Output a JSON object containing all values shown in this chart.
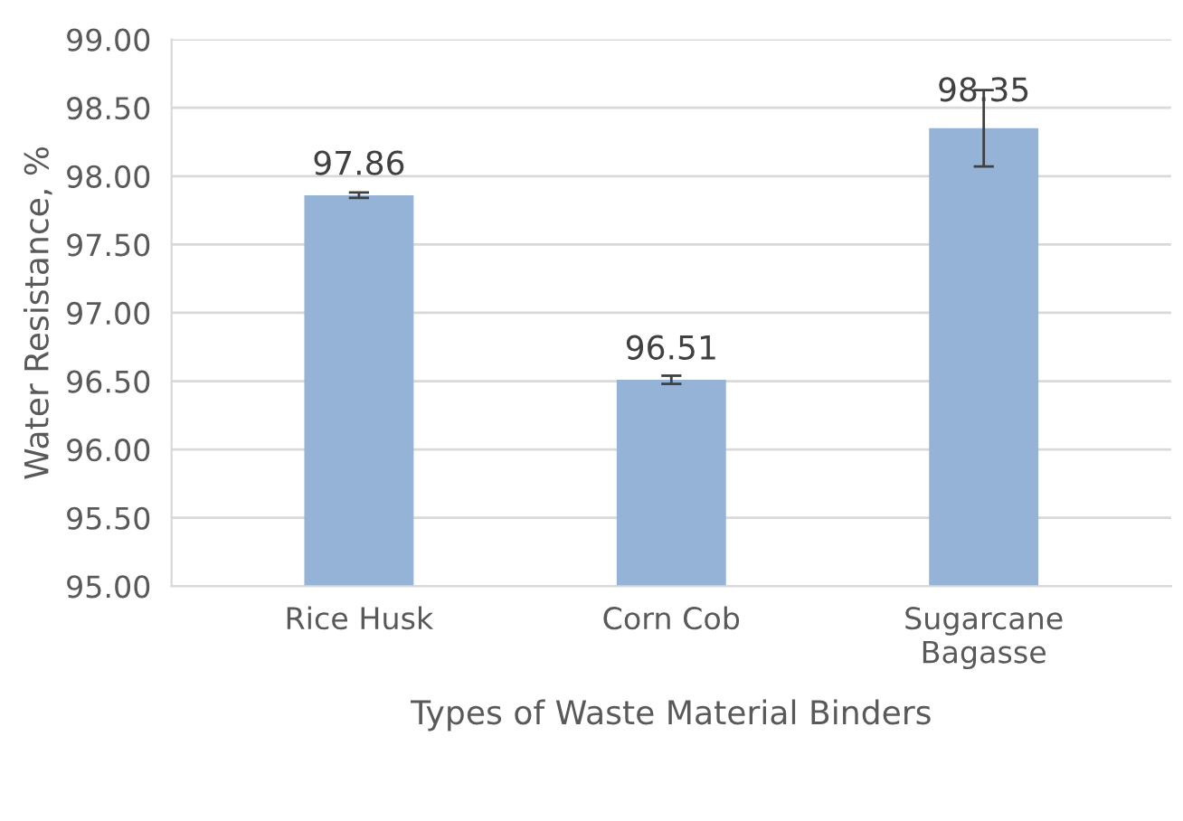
{
  "chart_data": {
    "type": "bar",
    "xlabel": "Types of Waste Material Binders",
    "ylabel": "Water Resistance, %",
    "categories": [
      "Rice Husk",
      "Corn Cob",
      "Sugarcane\nBagasse"
    ],
    "values": [
      97.86,
      96.51,
      98.35
    ],
    "errors": [
      0.02,
      0.03,
      0.28
    ],
    "color": "#95b3d7",
    "ylim": [
      95.0,
      99.0
    ],
    "yticks": [
      {
        "value": 95.0,
        "label": "95.00"
      },
      {
        "value": 95.5,
        "label": "95.50"
      },
      {
        "value": 96.0,
        "label": "96.00"
      },
      {
        "value": 96.5,
        "label": "96.50"
      },
      {
        "value": 97.0,
        "label": "97.00"
      },
      {
        "value": 97.5,
        "label": "97.50"
      },
      {
        "value": 98.0,
        "label": "98.00"
      },
      {
        "value": 98.5,
        "label": "98.50"
      },
      {
        "value": 99.0,
        "label": "99.00"
      }
    ],
    "grid": "y",
    "data_labels": true,
    "legend": false
  }
}
